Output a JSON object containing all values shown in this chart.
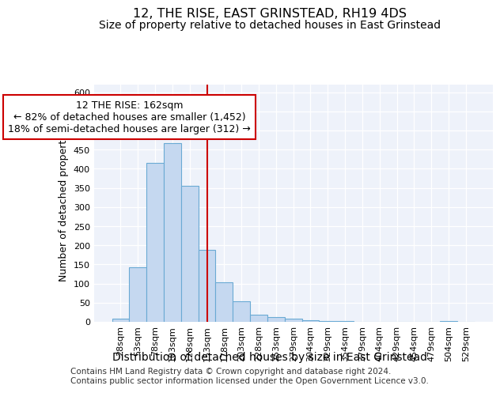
{
  "title": "12, THE RISE, EAST GRINSTEAD, RH19 4DS",
  "subtitle": "Size of property relative to detached houses in East Grinstead",
  "xlabel": "Distribution of detached houses by size in East Grinstead",
  "ylabel": "Number of detached properties",
  "categories": [
    "28sqm",
    "53sqm",
    "78sqm",
    "103sqm",
    "128sqm",
    "153sqm",
    "178sqm",
    "203sqm",
    "228sqm",
    "253sqm",
    "279sqm",
    "304sqm",
    "329sqm",
    "354sqm",
    "379sqm",
    "404sqm",
    "429sqm",
    "454sqm",
    "479sqm",
    "504sqm",
    "529sqm"
  ],
  "values": [
    9,
    143,
    415,
    467,
    355,
    188,
    104,
    54,
    18,
    13,
    9,
    4,
    3,
    2,
    1,
    0,
    0,
    0,
    0,
    3,
    0
  ],
  "bar_color": "#c5d8f0",
  "bar_edge_color": "#6aaad4",
  "vline_x": 5.0,
  "annotation_line1": "12 THE RISE: 162sqm",
  "annotation_line2": "← 82% of detached houses are smaller (1,452)",
  "annotation_line3": "18% of semi-detached houses are larger (312) →",
  "annotation_box_color": "#ffffff",
  "annotation_box_edge_color": "#cc0000",
  "vline_color": "#cc0000",
  "ylim": [
    0,
    620
  ],
  "yticks": [
    0,
    50,
    100,
    150,
    200,
    250,
    300,
    350,
    400,
    450,
    500,
    550,
    600
  ],
  "footer_line1": "Contains HM Land Registry data © Crown copyright and database right 2024.",
  "footer_line2": "Contains public sector information licensed under the Open Government Licence v3.0.",
  "bg_color": "#eef2fa",
  "title_fontsize": 11.5,
  "subtitle_fontsize": 10,
  "xlabel_fontsize": 10,
  "ylabel_fontsize": 9,
  "tick_fontsize": 8,
  "annotation_fontsize": 9,
  "footer_fontsize": 7.5
}
